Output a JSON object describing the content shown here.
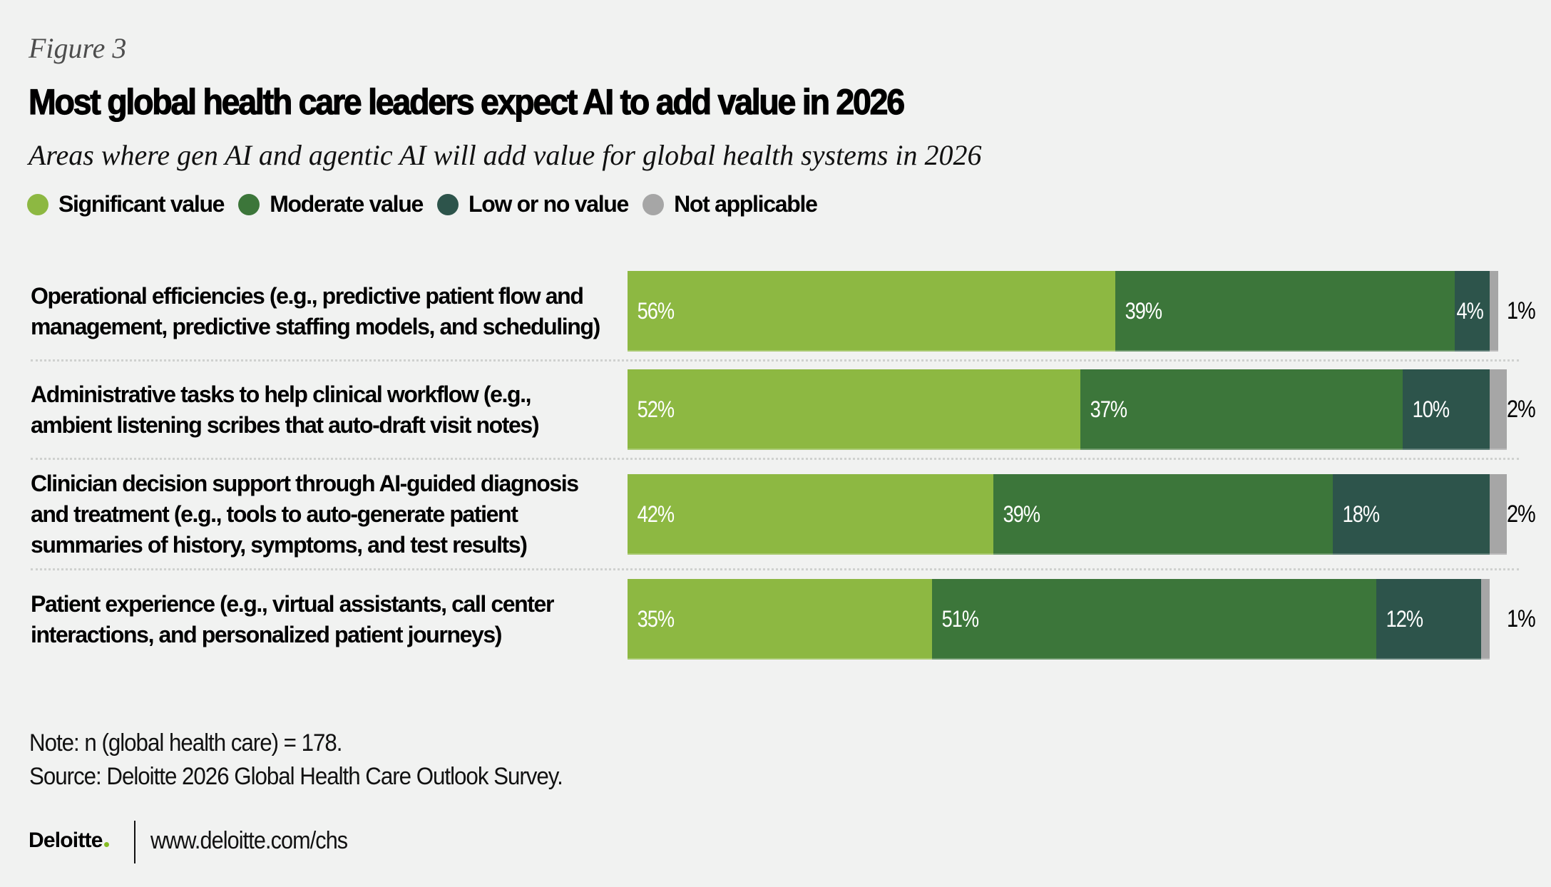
{
  "figure_label": "Figure 3",
  "chart_data": {
    "type": "bar",
    "orientation": "horizontal",
    "stacked": true,
    "normalized_to": 100,
    "title": "Most global health care leaders expect AI to add value in 2026",
    "subtitle": "Areas where gen AI and agentic AI will add value for global health systems in 2026",
    "xlabel": "",
    "ylabel": "",
    "xlim": [
      0,
      100
    ],
    "grid": false,
    "legend_position": "top-left",
    "value_format": "{v}%",
    "categories": [
      [
        "Operational efficiencies (e.g., predictive patient flow and",
        "management, predictive staffing models, and scheduling)"
      ],
      [
        "Administrative tasks to help clinical workflow (e.g.,",
        "ambient listening scribes that auto-draft visit notes)"
      ],
      [
        "Clinician decision support through AI-guided diagnosis",
        "and treatment (e.g., tools to auto-generate patient",
        "summaries of history, symptoms, and test results)"
      ],
      [
        "Patient experience (e.g., virtual assistants, call center",
        "interactions, and personalized patient journeys)"
      ]
    ],
    "series": [
      {
        "name": "Significant value",
        "color": "#8db842",
        "values": [
          56,
          52,
          42,
          35
        ],
        "label_position": "inside"
      },
      {
        "name": "Moderate value",
        "color": "#3c763a",
        "values": [
          39,
          37,
          39,
          51
        ],
        "label_position": "inside"
      },
      {
        "name": "Low or no value",
        "color": "#2d544b",
        "values": [
          4,
          10,
          18,
          12
        ],
        "label_position": "inside"
      },
      {
        "name": "Not applicable",
        "color": "#a6a6a6",
        "values": [
          1,
          2,
          2,
          1
        ],
        "label_position": "outside"
      }
    ]
  },
  "footer": {
    "note": "Note: n (global health care) = 178.",
    "source": "Source: Deloitte 2026 Global Health Care Outlook Survey.",
    "logo_text": "Deloitte",
    "logo_dot_color": "#86bc25",
    "url": "www.deloitte.com/chs"
  }
}
